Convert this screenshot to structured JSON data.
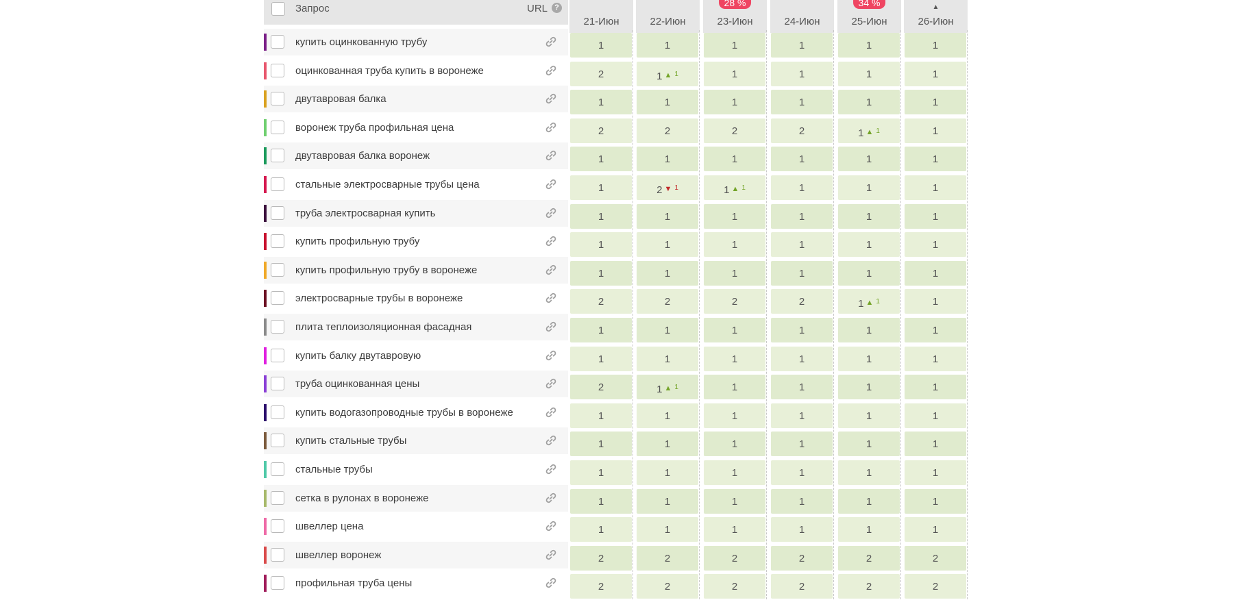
{
  "header": {
    "query_label": "Запрос",
    "url_label": "URL",
    "help_icon": "?"
  },
  "columns": [
    {
      "date": "21-Июн",
      "badge": ""
    },
    {
      "date": "22-Июн",
      "badge": ""
    },
    {
      "date": "23-Июн",
      "badge": "28 %"
    },
    {
      "date": "24-Июн",
      "badge": ""
    },
    {
      "date": "25-Июн",
      "badge": "34 %"
    },
    {
      "date": "26-Июн",
      "badge": "",
      "sort": "▲"
    }
  ],
  "rows": [
    {
      "query": "купить оцинкованную трубу",
      "color": "#7a1f87",
      "cells": [
        {
          "v": "1"
        },
        {
          "v": "1"
        },
        {
          "v": "1"
        },
        {
          "v": "1"
        },
        {
          "v": "1"
        },
        {
          "v": "1"
        }
      ]
    },
    {
      "query": "оцинкованная труба купить в воронеже",
      "color": "#e8576d",
      "cells": [
        {
          "v": "2"
        },
        {
          "v": "1",
          "dir": "up",
          "d": "1"
        },
        {
          "v": "1"
        },
        {
          "v": "1"
        },
        {
          "v": "1"
        },
        {
          "v": "1"
        }
      ]
    },
    {
      "query": "двутавровая балка",
      "color": "#d9a11f",
      "cells": [
        {
          "v": "1"
        },
        {
          "v": "1"
        },
        {
          "v": "1"
        },
        {
          "v": "1"
        },
        {
          "v": "1"
        },
        {
          "v": "1"
        }
      ]
    },
    {
      "query": "воронеж труба профильная цена",
      "color": "#6fcf6f",
      "cells": [
        {
          "v": "2"
        },
        {
          "v": "2"
        },
        {
          "v": "2"
        },
        {
          "v": "2"
        },
        {
          "v": "1",
          "dir": "up",
          "d": "1"
        },
        {
          "v": "1"
        }
      ]
    },
    {
      "query": "двутавровая балка воронеж",
      "color": "#1a9a5b",
      "cells": [
        {
          "v": "1"
        },
        {
          "v": "1"
        },
        {
          "v": "1"
        },
        {
          "v": "1"
        },
        {
          "v": "1"
        },
        {
          "v": "1"
        }
      ]
    },
    {
      "query": "стальные электросварные трубы цена",
      "color": "#d5174f",
      "cells": [
        {
          "v": "1"
        },
        {
          "v": "2",
          "dir": "down",
          "d": "1"
        },
        {
          "v": "1",
          "dir": "up",
          "d": "1"
        },
        {
          "v": "1"
        },
        {
          "v": "1"
        },
        {
          "v": "1"
        }
      ]
    },
    {
      "query": "труба электросварная купить",
      "color": "#3a0f3c",
      "cells": [
        {
          "v": "1"
        },
        {
          "v": "1"
        },
        {
          "v": "1"
        },
        {
          "v": "1"
        },
        {
          "v": "1"
        },
        {
          "v": "1"
        }
      ]
    },
    {
      "query": "купить профильную трубу",
      "color": "#c8102e",
      "cells": [
        {
          "v": "1"
        },
        {
          "v": "1"
        },
        {
          "v": "1"
        },
        {
          "v": "1"
        },
        {
          "v": "1"
        },
        {
          "v": "1"
        }
      ]
    },
    {
      "query": "купить профильную трубу в воронеже",
      "color": "#f0a928",
      "cells": [
        {
          "v": "1"
        },
        {
          "v": "1"
        },
        {
          "v": "1"
        },
        {
          "v": "1"
        },
        {
          "v": "1"
        },
        {
          "v": "1"
        }
      ]
    },
    {
      "query": "электросварные трубы в воронеже",
      "color": "#6b0f22",
      "cells": [
        {
          "v": "2"
        },
        {
          "v": "2"
        },
        {
          "v": "2"
        },
        {
          "v": "2"
        },
        {
          "v": "1",
          "dir": "up",
          "d": "1"
        },
        {
          "v": "1"
        }
      ]
    },
    {
      "query": "плита теплоизоляционная фасадная",
      "color": "#8a8a8a",
      "cells": [
        {
          "v": "1"
        },
        {
          "v": "1"
        },
        {
          "v": "1"
        },
        {
          "v": "1"
        },
        {
          "v": "1"
        },
        {
          "v": "1"
        }
      ]
    },
    {
      "query": "купить балку двутавровую",
      "color": "#e01fe0",
      "cells": [
        {
          "v": "1"
        },
        {
          "v": "1"
        },
        {
          "v": "1"
        },
        {
          "v": "1"
        },
        {
          "v": "1"
        },
        {
          "v": "1"
        }
      ]
    },
    {
      "query": "труба оцинкованная цены",
      "color": "#8a3fd6",
      "cells": [
        {
          "v": "2"
        },
        {
          "v": "1",
          "dir": "up",
          "d": "1"
        },
        {
          "v": "1"
        },
        {
          "v": "1"
        },
        {
          "v": "1"
        },
        {
          "v": "1"
        }
      ]
    },
    {
      "query": "купить водогазопроводные трубы в воронеже",
      "color": "#2a0c6b",
      "cells": [
        {
          "v": "1"
        },
        {
          "v": "1"
        },
        {
          "v": "1"
        },
        {
          "v": "1"
        },
        {
          "v": "1"
        },
        {
          "v": "1"
        }
      ]
    },
    {
      "query": "купить стальные трубы",
      "color": "#7b5a3c",
      "cells": [
        {
          "v": "1"
        },
        {
          "v": "1"
        },
        {
          "v": "1"
        },
        {
          "v": "1"
        },
        {
          "v": "1"
        },
        {
          "v": "1"
        }
      ]
    },
    {
      "query": "стальные трубы",
      "color": "#4fc9a8",
      "cells": [
        {
          "v": "1"
        },
        {
          "v": "1"
        },
        {
          "v": "1"
        },
        {
          "v": "1"
        },
        {
          "v": "1"
        },
        {
          "v": "1"
        }
      ]
    },
    {
      "query": "сетка в рулонах в воронеже",
      "color": "#a7b96a",
      "cells": [
        {
          "v": "1"
        },
        {
          "v": "1"
        },
        {
          "v": "1"
        },
        {
          "v": "1"
        },
        {
          "v": "1"
        },
        {
          "v": "1"
        }
      ]
    },
    {
      "query": "швеллер цена",
      "color": "#ee6aa7",
      "cells": [
        {
          "v": "1"
        },
        {
          "v": "1"
        },
        {
          "v": "1"
        },
        {
          "v": "1"
        },
        {
          "v": "1"
        },
        {
          "v": "1"
        }
      ]
    },
    {
      "query": "швеллер воронеж",
      "color": "#d94a4a",
      "cells": [
        {
          "v": "2"
        },
        {
          "v": "2"
        },
        {
          "v": "2"
        },
        {
          "v": "2"
        },
        {
          "v": "2"
        },
        {
          "v": "2"
        }
      ]
    },
    {
      "query": "профильная труба цены",
      "color": "#a01c5a",
      "cells": [
        {
          "v": "2"
        },
        {
          "v": "2"
        },
        {
          "v": "2"
        },
        {
          "v": "2"
        },
        {
          "v": "2"
        },
        {
          "v": "2"
        }
      ]
    }
  ]
}
